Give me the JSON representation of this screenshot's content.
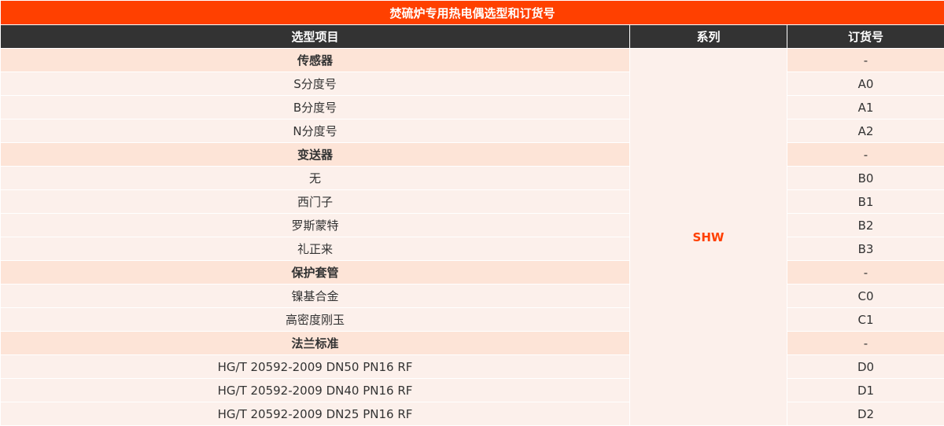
{
  "title": "焚硫炉专用热电偶选型和订货号",
  "headers": [
    "选型项目",
    "系列",
    "订货号"
  ],
  "series": "SHW",
  "colors": {
    "title_bg": "#ff4000",
    "header_bg": "#333333",
    "section_bg": "#fde4d7",
    "row_bg": "#fcf0eb",
    "series_text": "#ff4000"
  },
  "rows": [
    {
      "item": "传感器",
      "code": "-",
      "section": true
    },
    {
      "item": "S分度号",
      "code": "A0"
    },
    {
      "item": "B分度号",
      "code": "A1"
    },
    {
      "item": "N分度号",
      "code": "A2"
    },
    {
      "item": "变送器",
      "code": "-",
      "section": true
    },
    {
      "item": "无",
      "code": "B0"
    },
    {
      "item": "西门子",
      "code": "B1"
    },
    {
      "item": "罗斯蒙特",
      "code": "B2"
    },
    {
      "item": "礼正来",
      "code": "B3"
    },
    {
      "item": "保护套管",
      "code": "-",
      "section": true
    },
    {
      "item": "镍基合金",
      "code": "C0"
    },
    {
      "item": "高密度刚玉",
      "code": "C1"
    },
    {
      "item": "法兰标准",
      "code": "-",
      "section": true
    },
    {
      "item": "HG/T 20592-2009 DN50 PN16 RF",
      "code": "D0"
    },
    {
      "item": "HG/T 20592-2009 DN40 PN16 RF",
      "code": "D1"
    },
    {
      "item": "HG/T 20592-2009 DN25 PN16 RF",
      "code": "D2"
    }
  ]
}
